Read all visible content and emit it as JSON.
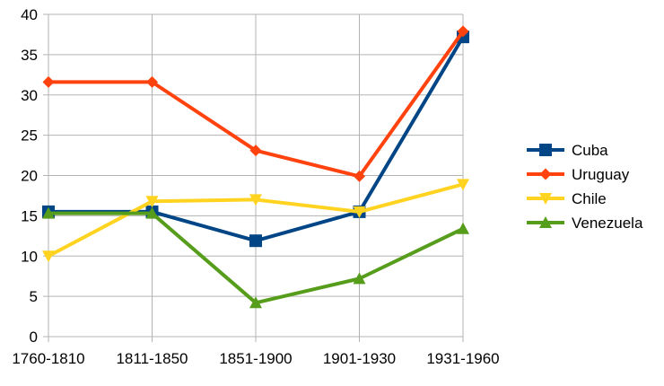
{
  "chart_data": {
    "type": "line",
    "title": "",
    "xlabel": "",
    "ylabel": "",
    "categories": [
      "1760-1810",
      "1811-1850",
      "1851-1900",
      "1901-1930",
      "1931-1960"
    ],
    "ylim": [
      0,
      40
    ],
    "yticks": [
      0,
      5,
      10,
      15,
      20,
      25,
      30,
      35,
      40
    ],
    "grid": true,
    "legend_position": "right",
    "series": [
      {
        "name": "Cuba",
        "color": "#004586",
        "marker": "square",
        "values": [
          15.5,
          15.5,
          11.9,
          15.5,
          37.2
        ]
      },
      {
        "name": "Uruguay",
        "color": "#ff420e",
        "marker": "diamond",
        "values": [
          31.6,
          31.6,
          23.1,
          19.9,
          37.9
        ]
      },
      {
        "name": "Chile",
        "color": "#ffd320",
        "marker": "triangle-down",
        "values": [
          10.0,
          16.8,
          17.0,
          15.5,
          18.9
        ]
      },
      {
        "name": "Venezuela",
        "color": "#579d1c",
        "marker": "triangle-up",
        "values": [
          15.3,
          15.3,
          4.2,
          7.2,
          13.4
        ]
      }
    ]
  }
}
